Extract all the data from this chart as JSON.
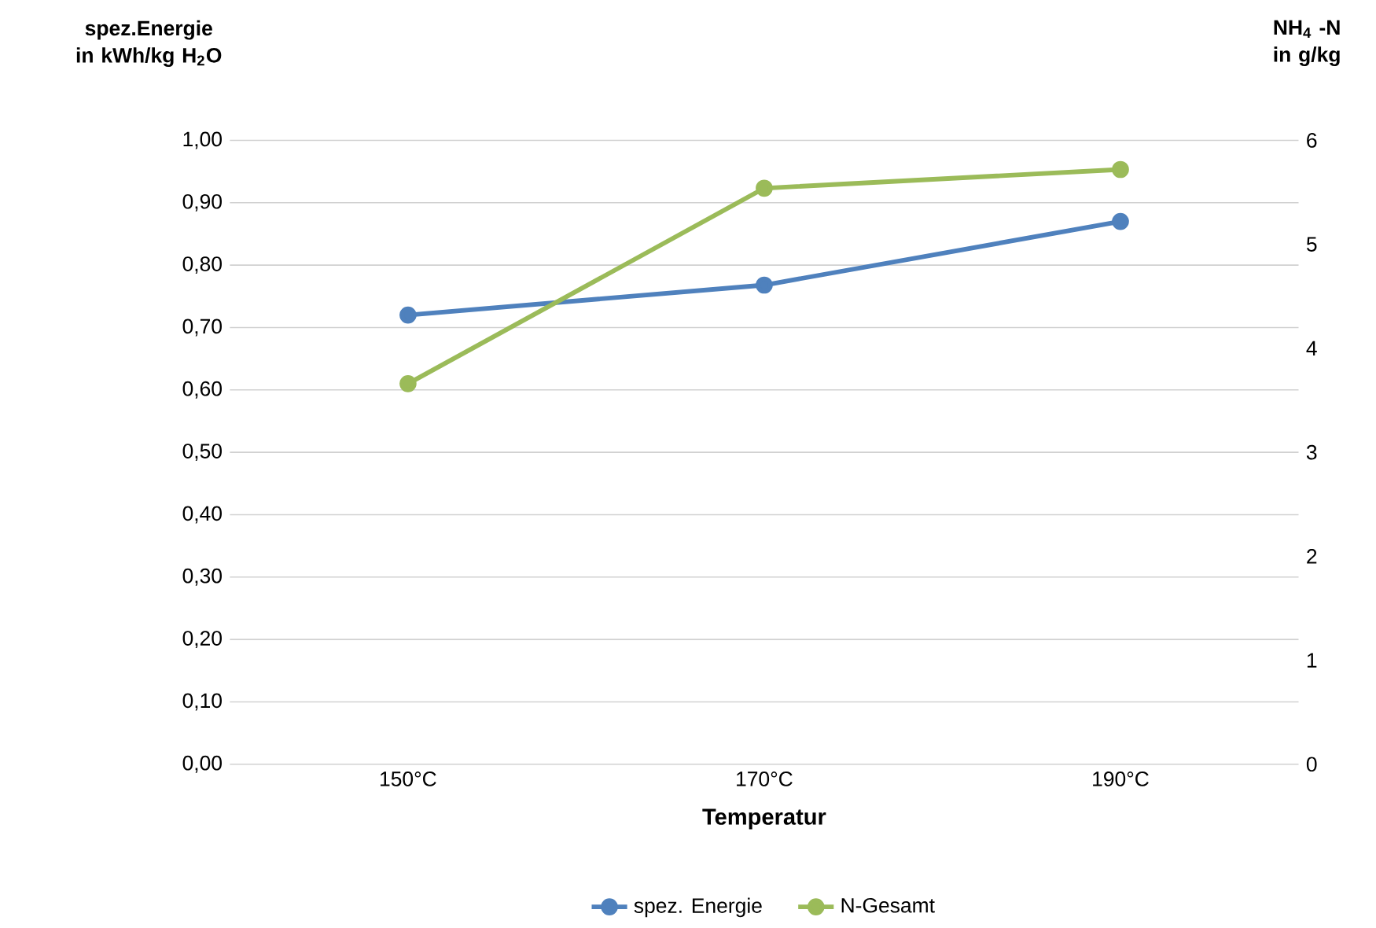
{
  "chart_data": {
    "type": "line",
    "xlabel": "Temperatur",
    "ylabel": "spez.Energie in kWh/kg H$_{2}$O",
    "y2label": "NH$_{4}$ -N in g/kg",
    "categories": [
      "150°C",
      "170°C",
      "190°C"
    ],
    "series": [
      {
        "name": "spez. Energie",
        "color": "#4f81bd",
        "values": [
          0.72,
          0.768,
          0.87
        ]
      },
      {
        "name": "N-Gesamt",
        "color": "#9bbb59",
        "values": [
          3.66,
          5.54,
          5.72
        ],
        "axis": "y2"
      }
    ],
    "ylim": [
      0,
      1
    ],
    "yticks": [
      {
        "value": 0,
        "label": "0,00"
      },
      {
        "value": 0.1,
        "label": "0,10"
      },
      {
        "value": 0.2,
        "label": "0,20"
      },
      {
        "value": 0.3,
        "label": "0,30"
      },
      {
        "value": 0.4,
        "label": "0,40"
      },
      {
        "value": 0.5,
        "label": "0,50"
      },
      {
        "value": 0.6,
        "label": "0,60"
      },
      {
        "value": 0.7,
        "label": "0,70"
      },
      {
        "value": 0.8,
        "label": "0,80"
      },
      {
        "value": 0.9,
        "label": "0,90"
      },
      {
        "value": 1,
        "label": "1,00"
      }
    ],
    "y2lim": [
      0,
      6
    ],
    "y2ticks": [
      0,
      1,
      2,
      3,
      4,
      5,
      6
    ],
    "grid": "y",
    "legend": "bottom",
    "marker": "circle",
    "line_style": "solid"
  }
}
